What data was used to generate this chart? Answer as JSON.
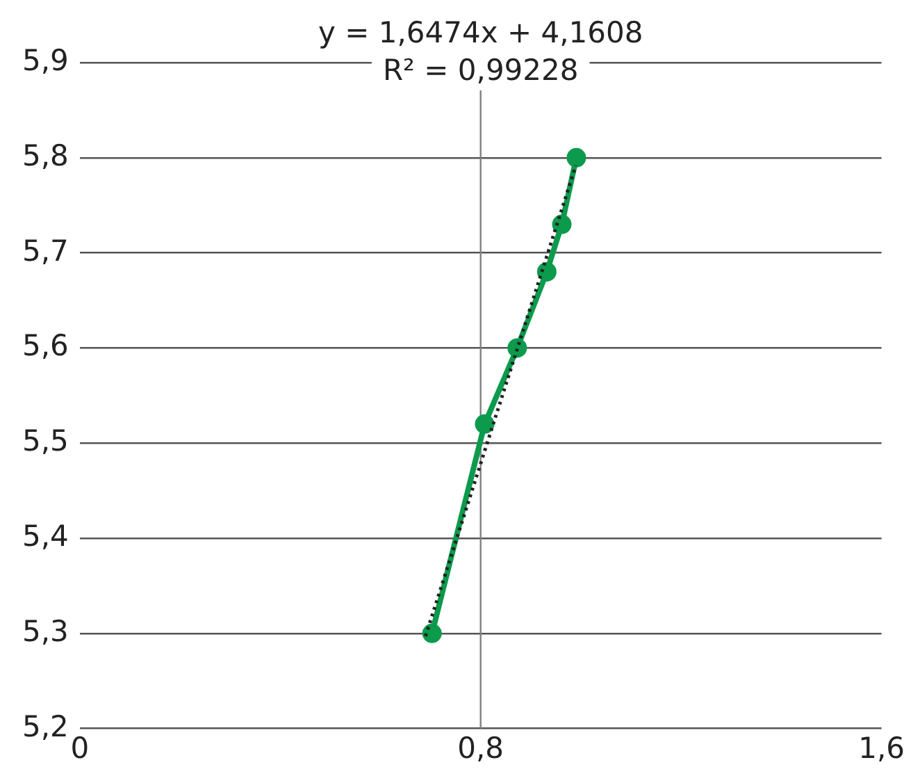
{
  "chart_data": {
    "type": "line",
    "annotations": [
      "y = 1,6474x + 4,1608",
      "R² = 0,99228"
    ],
    "xlim": [
      0,
      1.6
    ],
    "xticks": [
      0,
      {
        "value": 0.8,
        "label": "0,8"
      },
      {
        "value": 1.6,
        "label": "1,6"
      }
    ],
    "ylim": [
      5.2,
      5.9
    ],
    "yticks": [
      {
        "value": 5.2,
        "label": "5,2"
      },
      {
        "value": 5.3,
        "label": "5,3"
      },
      {
        "value": 5.4,
        "label": "5,4"
      },
      {
        "value": 5.5,
        "label": "5,5"
      },
      {
        "value": 5.6,
        "label": "5,6"
      },
      {
        "value": 5.7,
        "label": "5,7"
      },
      {
        "value": 5.8,
        "label": "5,8"
      },
      {
        "value": 5.9,
        "label": "5,9"
      }
    ],
    "grid": "y",
    "legend": false,
    "marker": "circle",
    "line_style": "solid",
    "ref_lines": [
      {
        "axis": "x",
        "value": 0.8,
        "color": "#808080"
      }
    ],
    "series": [
      {
        "color": "#0c9a4c",
        "x": [
          0.703,
          0.808,
          0.873,
          0.932,
          0.962,
          0.991
        ],
        "values": [
          5.3,
          5.52,
          5.6,
          5.68,
          5.73,
          5.8
        ]
      },
      {
        "type": "line",
        "color": "#222222",
        "marker": "none",
        "line_style": "dotted",
        "x": [
          0.69,
          0.99
        ],
        "values": [
          5.297,
          5.792
        ]
      }
    ]
  }
}
